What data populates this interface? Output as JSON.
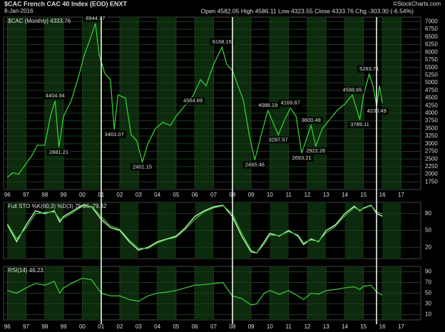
{
  "header": {
    "symbol": "$CAC French CAC 40 Index (EOD) ENXT",
    "date": "8-Jan-2016",
    "quote": "Open 4582.05 High 4586.11 Low 4323.55 Close 4333.76 Chg -303.30 (-6.54%)",
    "credit": "©StockCharts.com"
  },
  "chart_data": [
    {
      "type": "line",
      "label": "$CAC (Monthly) 4333.76",
      "x": [
        1996.0,
        1996.3,
        1996.6,
        1997.0,
        1997.3,
        1997.6,
        1998.0,
        1998.3,
        1998.55,
        1998.75,
        1999.0,
        1999.4,
        1999.8,
        2000.1,
        2000.4,
        2000.7,
        2000.9,
        2001.2,
        2001.5,
        2001.7,
        2001.9,
        2002.3,
        2002.6,
        2002.9,
        2003.2,
        2003.5,
        2003.9,
        2004.3,
        2004.7,
        2005.0,
        2005.4,
        2005.9,
        2006.3,
        2006.6,
        2007.0,
        2007.45,
        2007.7,
        2008.0,
        2008.3,
        2008.6,
        2008.9,
        2009.2,
        2009.5,
        2009.9,
        2010.45,
        2010.8,
        2011.1,
        2011.4,
        2011.7,
        2012.2,
        2012.45,
        2012.8,
        2013.2,
        2013.6,
        2014.0,
        2014.4,
        2014.8,
        2015.0,
        2015.3,
        2015.5,
        2015.7,
        2015.85,
        2016.0
      ],
      "series": [
        {
          "color": "#33cc33",
          "values": [
            1900,
            2050,
            2000,
            2350,
            2600,
            2950,
            2950,
            3900,
            4404.94,
            2881.21,
            3900,
            4400,
            5200,
            5900,
            6400,
            6944.77,
            5900,
            5300,
            5100,
            3463.07,
            4600,
            4500,
            3300,
            3100,
            2401.15,
            3000,
            3500,
            3700,
            3600,
            3900,
            4200,
            4564.69,
            5100,
            4900,
            5600,
            6168.15,
            5600,
            5400,
            4900,
            4400,
            3300,
            2465.46,
            3200,
            4088.18,
            3287.57,
            3800,
            4169.87,
            3900,
            2693.21,
            3600.48,
            2922.26,
            3500,
            3800,
            4100,
            4300,
            4598.65,
            3789.11,
            4600,
            5283.71,
            4900,
            4230.49,
            4900,
            4333.76
          ]
        }
      ],
      "annotations": [
        {
          "x": 1998.55,
          "value": 4404.94
        },
        {
          "x": 1998.75,
          "value": 2881.21
        },
        {
          "x": 2000.7,
          "value": 6944.77
        },
        {
          "x": 2001.7,
          "value": 3463.07
        },
        {
          "x": 2003.2,
          "value": 2401.15
        },
        {
          "x": 2005.9,
          "value": 4564.69
        },
        {
          "x": 2007.45,
          "value": 6168.15
        },
        {
          "x": 2009.2,
          "value": 2465.46
        },
        {
          "x": 2009.9,
          "value": 4088.18
        },
        {
          "x": 2010.45,
          "value": 3287.57
        },
        {
          "x": 2011.1,
          "value": 4169.87
        },
        {
          "x": 2011.7,
          "value": 2693.21
        },
        {
          "x": 2012.2,
          "value": 3600.48
        },
        {
          "x": 2012.45,
          "value": 2922.26
        },
        {
          "x": 2014.4,
          "value": 4598.65
        },
        {
          "x": 2014.8,
          "value": 3789.11
        },
        {
          "x": 2015.3,
          "value": 5283.71
        },
        {
          "x": 2015.7,
          "value": 4230.49
        }
      ],
      "xlim": [
        1995.8,
        2018.05
      ],
      "xticks": [
        {
          "value": 1996,
          "label": "96"
        },
        {
          "value": 1997,
          "label": "97"
        },
        {
          "value": 1998,
          "label": "98"
        },
        {
          "value": 1999,
          "label": "99"
        },
        {
          "value": 2000,
          "label": "00"
        },
        {
          "value": 2001,
          "label": "01"
        },
        {
          "value": 2002,
          "label": "02"
        },
        {
          "value": 2003,
          "label": "03"
        },
        {
          "value": 2004,
          "label": "04"
        },
        {
          "value": 2005,
          "label": "05"
        },
        {
          "value": 2006,
          "label": "06"
        },
        {
          "value": 2007,
          "label": "07"
        },
        {
          "value": 2008,
          "label": "08"
        },
        {
          "value": 2009,
          "label": "09"
        },
        {
          "value": 2010,
          "label": "10"
        },
        {
          "value": 2011,
          "label": "11"
        },
        {
          "value": 2012,
          "label": "12"
        },
        {
          "value": 2013,
          "label": "13"
        },
        {
          "value": 2014,
          "label": "14"
        },
        {
          "value": 2015,
          "label": "15"
        },
        {
          "value": 2016,
          "label": "16"
        },
        {
          "value": 2017,
          "label": "17"
        }
      ],
      "ylim": [
        1500,
        7150
      ],
      "yticks": [
        1750,
        2000,
        2250,
        2500,
        2750,
        3000,
        3250,
        3500,
        3750,
        4000,
        4250,
        4500,
        4750,
        5000,
        5250,
        5500,
        5750,
        6000,
        6250,
        6500,
        6750,
        7000
      ]
    },
    {
      "type": "line",
      "label": "Full STO %K(60,3) %D(3) 75.26, 79.32",
      "x": [
        1996.0,
        1996.5,
        1997.0,
        1997.5,
        1998.0,
        1998.5,
        1998.8,
        1999.0,
        1999.5,
        2000.0,
        2000.5,
        2001.0,
        2001.5,
        2002.0,
        2002.5,
        2003.0,
        2003.5,
        2004.0,
        2004.5,
        2005.0,
        2005.5,
        2006.0,
        2006.5,
        2007.0,
        2007.5,
        2008.0,
        2008.5,
        2009.0,
        2009.3,
        2009.7,
        2010.0,
        2010.5,
        2011.0,
        2011.5,
        2011.8,
        2012.2,
        2012.6,
        2013.0,
        2013.5,
        2014.0,
        2014.5,
        2014.8,
        2015.0,
        2015.4,
        2015.7,
        2016.0
      ],
      "series": [
        {
          "color": "#c8ffc0",
          "values": [
            60,
            30,
            60,
            85,
            80,
            85,
            65,
            75,
            85,
            95,
            92,
            70,
            55,
            50,
            30,
            15,
            20,
            30,
            35,
            40,
            55,
            75,
            85,
            92,
            95,
            75,
            40,
            12,
            10,
            30,
            45,
            40,
            50,
            40,
            25,
            35,
            30,
            50,
            60,
            80,
            93,
            85,
            90,
            95,
            80,
            75.26
          ]
        },
        {
          "color": "#3fbf3f",
          "values": [
            62,
            35,
            55,
            80,
            82,
            83,
            70,
            72,
            82,
            93,
            93,
            75,
            58,
            52,
            33,
            18,
            18,
            28,
            34,
            38,
            52,
            70,
            83,
            90,
            94,
            80,
            45,
            15,
            10,
            26,
            42,
            41,
            48,
            42,
            28,
            33,
            31,
            46,
            58,
            76,
            91,
            86,
            89,
            94,
            83,
            79.32
          ]
        }
      ],
      "xlim": [
        1995.8,
        2018.05
      ],
      "ylim": [
        0,
        100
      ],
      "yticks": [
        20,
        50,
        80
      ]
    },
    {
      "type": "line",
      "label": "RSI(14) 46.23",
      "x": [
        1996.0,
        1996.5,
        1997.0,
        1997.5,
        1998.0,
        1998.5,
        1998.8,
        1999.0,
        1999.5,
        2000.0,
        2000.5,
        2001.0,
        2001.5,
        2002.0,
        2002.5,
        2003.0,
        2003.5,
        2004.0,
        2004.5,
        2005.0,
        2005.5,
        2006.0,
        2006.5,
        2007.0,
        2007.5,
        2008.0,
        2008.5,
        2009.0,
        2009.3,
        2009.7,
        2010.0,
        2010.5,
        2011.0,
        2011.5,
        2011.8,
        2012.2,
        2012.6,
        2013.0,
        2013.5,
        2014.0,
        2014.5,
        2014.8,
        2015.0,
        2015.4,
        2015.7,
        2016.0
      ],
      "series": [
        {
          "color": "#3fbf3f",
          "values": [
            55,
            50,
            60,
            68,
            65,
            72,
            50,
            60,
            70,
            78,
            75,
            50,
            45,
            45,
            38,
            35,
            45,
            50,
            52,
            55,
            60,
            65,
            66,
            68,
            70,
            45,
            40,
            28,
            30,
            50,
            55,
            48,
            55,
            45,
            38,
            50,
            48,
            55,
            57,
            60,
            62,
            57,
            63,
            65,
            52,
            46.23
          ]
        }
      ],
      "xlim": [
        1995.8,
        2018.05
      ],
      "xticks": [
        {
          "value": 1996,
          "label": "96"
        },
        {
          "value": 1997,
          "label": "97"
        },
        {
          "value": 1998,
          "label": "98"
        },
        {
          "value": 1999,
          "label": "99"
        },
        {
          "value": 2000,
          "label": "00"
        },
        {
          "value": 2001,
          "label": "01"
        },
        {
          "value": 2002,
          "label": "02"
        },
        {
          "value": 2003,
          "label": "03"
        },
        {
          "value": 2004,
          "label": "04"
        },
        {
          "value": 2005,
          "label": "05"
        },
        {
          "value": 2006,
          "label": "06"
        },
        {
          "value": 2007,
          "label": "07"
        },
        {
          "value": 2008,
          "label": "08"
        },
        {
          "value": 2009,
          "label": "09"
        },
        {
          "value": 2010,
          "label": "10"
        },
        {
          "value": 2011,
          "label": "11"
        },
        {
          "value": 2012,
          "label": "12"
        },
        {
          "value": 2013,
          "label": "13"
        },
        {
          "value": 2014,
          "label": "14"
        },
        {
          "value": 2015,
          "label": "15"
        },
        {
          "value": 2016,
          "label": "16"
        },
        {
          "value": 2017,
          "label": "17"
        }
      ],
      "ylim": [
        0,
        100
      ],
      "yticks": [
        10,
        30,
        50,
        70,
        90
      ]
    }
  ]
}
